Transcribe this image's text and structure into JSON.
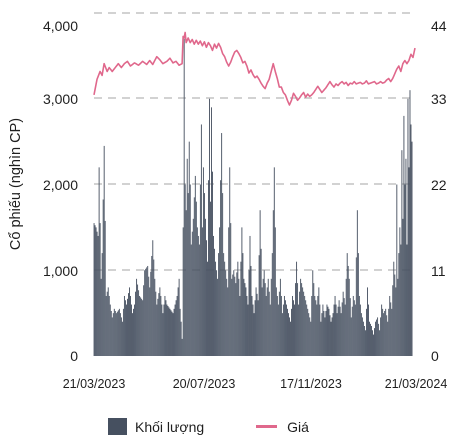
{
  "chart_data": {
    "type": "bar+line",
    "ylabel_left": "Cổ phiếu (nghìn CP)",
    "ylabel_right": "",
    "y_left": {
      "min": 0,
      "max": 4000,
      "ticks": [
        "0",
        "1,000",
        "2,000",
        "3,000",
        "4,000"
      ]
    },
    "y_right": {
      "min": 0,
      "max": 44,
      "ticks": [
        "0",
        "11",
        "22",
        "33",
        "44"
      ]
    },
    "x_dates": [
      "21/03/2023",
      "20/07/2023",
      "17/11/2023",
      "21/03/2024"
    ],
    "grid": "dashed horizontal",
    "colors": {
      "volume": "#465060",
      "price": "#e0688c",
      "grid": "#c4c4c4"
    },
    "series": [
      {
        "name": "Khối lượng",
        "type": "bar",
        "keypoints": [
          [
            0,
            1550
          ],
          [
            2,
            1500
          ],
          [
            4,
            1400
          ],
          [
            5,
            2200
          ],
          [
            7,
            900
          ],
          [
            8,
            1200
          ],
          [
            10,
            2450
          ],
          [
            12,
            700
          ],
          [
            14,
            800
          ],
          [
            16,
            600
          ],
          [
            18,
            450
          ],
          [
            20,
            550
          ],
          [
            22,
            500
          ],
          [
            25,
            550
          ],
          [
            28,
            400
          ],
          [
            30,
            700
          ],
          [
            32,
            600
          ],
          [
            35,
            800
          ],
          [
            38,
            500
          ],
          [
            40,
            600
          ],
          [
            42,
            900
          ],
          [
            45,
            700
          ],
          [
            48,
            650
          ],
          [
            50,
            1000
          ],
          [
            53,
            1050
          ],
          [
            55,
            800
          ],
          [
            58,
            1350
          ],
          [
            60,
            900
          ],
          [
            62,
            600
          ],
          [
            65,
            800
          ],
          [
            68,
            500
          ],
          [
            70,
            700
          ],
          [
            72,
            600
          ],
          [
            75,
            550
          ],
          [
            78,
            500
          ],
          [
            80,
            600
          ],
          [
            82,
            700
          ],
          [
            84,
            900
          ],
          [
            85,
            550
          ],
          [
            86,
            400
          ],
          [
            87,
            200
          ],
          [
            88,
            1500
          ],
          [
            89,
            3700
          ],
          [
            90,
            2000
          ],
          [
            91,
            1700
          ],
          [
            92,
            2300
          ],
          [
            93,
            1900
          ],
          [
            94,
            2500
          ],
          [
            95,
            2000
          ],
          [
            96,
            1300
          ],
          [
            98,
            1600
          ],
          [
            100,
            2100
          ],
          [
            102,
            1500
          ],
          [
            104,
            1300
          ],
          [
            106,
            2700
          ],
          [
            107,
            1500
          ],
          [
            108,
            2200
          ],
          [
            110,
            1600
          ],
          [
            112,
            1100
          ],
          [
            114,
            3000
          ],
          [
            115,
            1800
          ],
          [
            116,
            2900
          ],
          [
            118,
            1400
          ],
          [
            120,
            1100
          ],
          [
            122,
            900
          ],
          [
            124,
            1500
          ],
          [
            126,
            2600
          ],
          [
            128,
            1200
          ],
          [
            130,
            1000
          ],
          [
            132,
            800
          ],
          [
            134,
            2200
          ],
          [
            136,
            900
          ],
          [
            138,
            1000
          ],
          [
            140,
            850
          ],
          [
            142,
            1100
          ],
          [
            144,
            700
          ],
          [
            146,
            1500
          ],
          [
            148,
            900
          ],
          [
            150,
            800
          ],
          [
            152,
            600
          ],
          [
            154,
            1400
          ],
          [
            156,
            700
          ],
          [
            158,
            500
          ],
          [
            160,
            800
          ],
          [
            162,
            650
          ],
          [
            164,
            1700
          ],
          [
            166,
            800
          ],
          [
            168,
            1000
          ],
          [
            170,
            700
          ],
          [
            172,
            900
          ],
          [
            174,
            600
          ],
          [
            176,
            1200
          ],
          [
            178,
            2200
          ],
          [
            180,
            800
          ],
          [
            182,
            600
          ],
          [
            184,
            900
          ],
          [
            186,
            500
          ],
          [
            188,
            700
          ],
          [
            190,
            600
          ],
          [
            192,
            500
          ],
          [
            194,
            400
          ],
          [
            196,
            700
          ],
          [
            198,
            600
          ],
          [
            200,
            1100
          ],
          [
            202,
            600
          ],
          [
            204,
            900
          ],
          [
            206,
            800
          ],
          [
            208,
            700
          ],
          [
            210,
            600
          ],
          [
            212,
            500
          ],
          [
            214,
            400
          ],
          [
            216,
            1000
          ],
          [
            218,
            700
          ],
          [
            220,
            600
          ],
          [
            222,
            800
          ],
          [
            224,
            400
          ],
          [
            226,
            600
          ],
          [
            228,
            450
          ],
          [
            230,
            600
          ],
          [
            232,
            550
          ],
          [
            234,
            400
          ],
          [
            236,
            500
          ],
          [
            238,
            700
          ],
          [
            240,
            500
          ],
          [
            242,
            650
          ],
          [
            244,
            500
          ],
          [
            246,
            750
          ],
          [
            248,
            600
          ],
          [
            250,
            1200
          ],
          [
            252,
            900
          ],
          [
            254,
            450
          ],
          [
            256,
            700
          ],
          [
            258,
            600
          ],
          [
            260,
            1700
          ],
          [
            262,
            700
          ],
          [
            264,
            500
          ],
          [
            266,
            400
          ],
          [
            268,
            300
          ],
          [
            270,
            800
          ],
          [
            272,
            400
          ],
          [
            274,
            350
          ],
          [
            276,
            250
          ],
          [
            278,
            400
          ],
          [
            280,
            450
          ],
          [
            282,
            300
          ],
          [
            284,
            600
          ],
          [
            286,
            500
          ],
          [
            288,
            550
          ],
          [
            290,
            400
          ],
          [
            292,
            700
          ],
          [
            294,
            550
          ],
          [
            296,
            1100
          ],
          [
            298,
            800
          ],
          [
            299,
            2000
          ],
          [
            300,
            900
          ],
          [
            302,
            1500
          ],
          [
            303,
            1300
          ],
          [
            304,
            2400
          ],
          [
            305,
            1600
          ],
          [
            306,
            2800
          ],
          [
            307,
            2000
          ],
          [
            308,
            2300
          ],
          [
            309,
            1300
          ],
          [
            310,
            3000
          ],
          [
            311,
            2200
          ],
          [
            312,
            3100
          ],
          [
            313,
            2700
          ],
          [
            314,
            2500
          ]
        ]
      },
      {
        "name": "Giá",
        "type": "line",
        "keypoints": [
          [
            0,
            33.5
          ],
          [
            3,
            35.5
          ],
          [
            6,
            36.5
          ],
          [
            8,
            36
          ],
          [
            10,
            37.5
          ],
          [
            13,
            36.5
          ],
          [
            15,
            37
          ],
          [
            18,
            36.5
          ],
          [
            21,
            37
          ],
          [
            24,
            37.5
          ],
          [
            27,
            37
          ],
          [
            30,
            37.5
          ],
          [
            33,
            37.8
          ],
          [
            36,
            37.2
          ],
          [
            40,
            37.6
          ],
          [
            44,
            37.3
          ],
          [
            48,
            37.8
          ],
          [
            52,
            37.4
          ],
          [
            55,
            37.9
          ],
          [
            58,
            37.4
          ],
          [
            62,
            38.4
          ],
          [
            65,
            38
          ],
          [
            68,
            37.5
          ],
          [
            72,
            37.8
          ],
          [
            75,
            38.2
          ],
          [
            78,
            37.6
          ],
          [
            81,
            37.8
          ],
          [
            84,
            37.3
          ],
          [
            87,
            37.5
          ],
          [
            88,
            41
          ],
          [
            89,
            40.8
          ],
          [
            90,
            41.5
          ],
          [
            91,
            40.2
          ],
          [
            93,
            40.8
          ],
          [
            95,
            40.2
          ],
          [
            97,
            40.6
          ],
          [
            99,
            40
          ],
          [
            101,
            40.5
          ],
          [
            103,
            40
          ],
          [
            105,
            40.4
          ],
          [
            107,
            39.8
          ],
          [
            109,
            40.3
          ],
          [
            111,
            39.6
          ],
          [
            113,
            40.2
          ],
          [
            115,
            39.8
          ],
          [
            117,
            39.2
          ],
          [
            119,
            40
          ],
          [
            121,
            39.5
          ],
          [
            123,
            40.1
          ],
          [
            125,
            39.6
          ],
          [
            127,
            38.8
          ],
          [
            129,
            38.4
          ],
          [
            131,
            37.7
          ],
          [
            133,
            37.2
          ],
          [
            135,
            37.7
          ],
          [
            137,
            38.4
          ],
          [
            139,
            39
          ],
          [
            141,
            39.2
          ],
          [
            143,
            38.8
          ],
          [
            145,
            38.3
          ],
          [
            147,
            37.6
          ],
          [
            149,
            37.8
          ],
          [
            151,
            37.2
          ],
          [
            153,
            36.3
          ],
          [
            155,
            36.7
          ],
          [
            157,
            36.1
          ],
          [
            159,
            35.7
          ],
          [
            161,
            35.9
          ],
          [
            163,
            35.5
          ],
          [
            165,
            35
          ],
          [
            167,
            34.6
          ],
          [
            169,
            34.3
          ],
          [
            171,
            35
          ],
          [
            173,
            35.5
          ],
          [
            175,
            36.5
          ],
          [
            177,
            37.5
          ],
          [
            179,
            36.5
          ],
          [
            181,
            35.6
          ],
          [
            183,
            34.5
          ],
          [
            185,
            34.5
          ],
          [
            187,
            33.8
          ],
          [
            189,
            33.5
          ],
          [
            191,
            32.8
          ],
          [
            193,
            32.2
          ],
          [
            195,
            32.8
          ],
          [
            197,
            33.7
          ],
          [
            199,
            33.3
          ],
          [
            201,
            32.8
          ],
          [
            203,
            33.1
          ],
          [
            205,
            33.5
          ],
          [
            207,
            33.8
          ],
          [
            209,
            33.2
          ],
          [
            211,
            33.6
          ],
          [
            213,
            33.3
          ],
          [
            215,
            33.5
          ],
          [
            217,
            33.8
          ],
          [
            219,
            34.2
          ],
          [
            221,
            34.6
          ],
          [
            223,
            34.2
          ],
          [
            225,
            33.8
          ],
          [
            227,
            34.1
          ],
          [
            229,
            34.4
          ],
          [
            231,
            34.8
          ],
          [
            233,
            35.2
          ],
          [
            235,
            34.8
          ],
          [
            237,
            34.5
          ],
          [
            239,
            34.9
          ],
          [
            241,
            34.7
          ],
          [
            243,
            35
          ],
          [
            245,
            35.2
          ],
          [
            247,
            34.9
          ],
          [
            249,
            35.1
          ],
          [
            251,
            34.7
          ],
          [
            253,
            35
          ],
          [
            255,
            34.9
          ],
          [
            257,
            35.2
          ],
          [
            259,
            34.9
          ],
          [
            261,
            35
          ],
          [
            263,
            35.1
          ],
          [
            265,
            34.9
          ],
          [
            267,
            35
          ],
          [
            269,
            35.3
          ],
          [
            271,
            34.9
          ],
          [
            273,
            35
          ],
          [
            275,
            35.1
          ],
          [
            277,
            35.2
          ],
          [
            279,
            34.9
          ],
          [
            281,
            35
          ],
          [
            283,
            35.2
          ],
          [
            285,
            35
          ],
          [
            287,
            35.1
          ],
          [
            289,
            35.4
          ],
          [
            291,
            35.6
          ],
          [
            293,
            35.2
          ],
          [
            295,
            35.6
          ],
          [
            297,
            36.2
          ],
          [
            299,
            36.8
          ],
          [
            301,
            37.2
          ],
          [
            303,
            36.5
          ],
          [
            305,
            37.5
          ],
          [
            307,
            37.9
          ],
          [
            309,
            37.5
          ],
          [
            311,
            37.9
          ],
          [
            313,
            38.7
          ],
          [
            315,
            38.3
          ],
          [
            317,
            39.5
          ]
        ]
      }
    ]
  }
}
